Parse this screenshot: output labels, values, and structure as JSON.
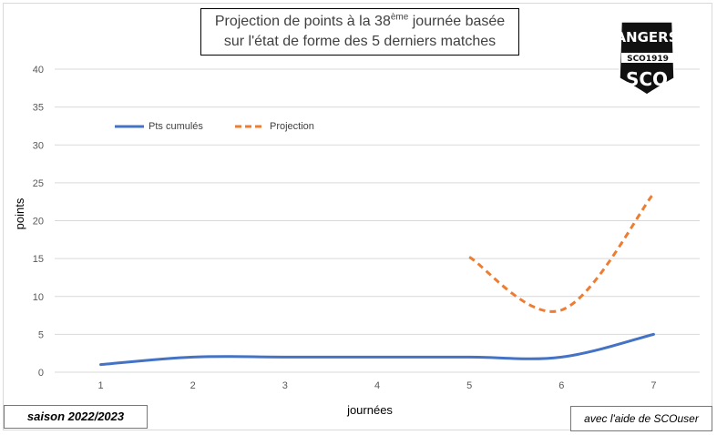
{
  "title": {
    "line1_before": "Projection de points à la 38",
    "line1_sup": "ème",
    "line1_after": " journée basée",
    "line2": "sur l'état de forme des 5 derniers matches"
  },
  "footer": {
    "season": "saison 2022/2023",
    "credit": "avec l'aide de SCOuser"
  },
  "logo": {
    "top_text": "ANGERS",
    "band_text": "SCO1919",
    "bottom_text": "SCO",
    "colors": {
      "black": "#111111",
      "white": "#ffffff"
    }
  },
  "chart_data": {
    "type": "line",
    "x": [
      1,
      2,
      3,
      4,
      5,
      6,
      7
    ],
    "xlabel": "journées",
    "ylabel": "points",
    "ylim": [
      0,
      40
    ],
    "yticks": [
      0,
      5,
      10,
      15,
      20,
      25,
      30,
      35,
      40
    ],
    "grid": true,
    "legend": "top-left",
    "series": [
      {
        "name": "Pts cumulés",
        "x": [
          1,
          2,
          3,
          4,
          5,
          6,
          7
        ],
        "values": [
          1,
          2,
          2,
          2,
          2,
          2,
          5
        ],
        "color": "#4472c4",
        "style": "solid"
      },
      {
        "name": "Projection",
        "x": [
          5,
          6,
          7
        ],
        "values": [
          15.2,
          8.2,
          23.6
        ],
        "color": "#ed7d31",
        "style": "dashed"
      }
    ]
  }
}
